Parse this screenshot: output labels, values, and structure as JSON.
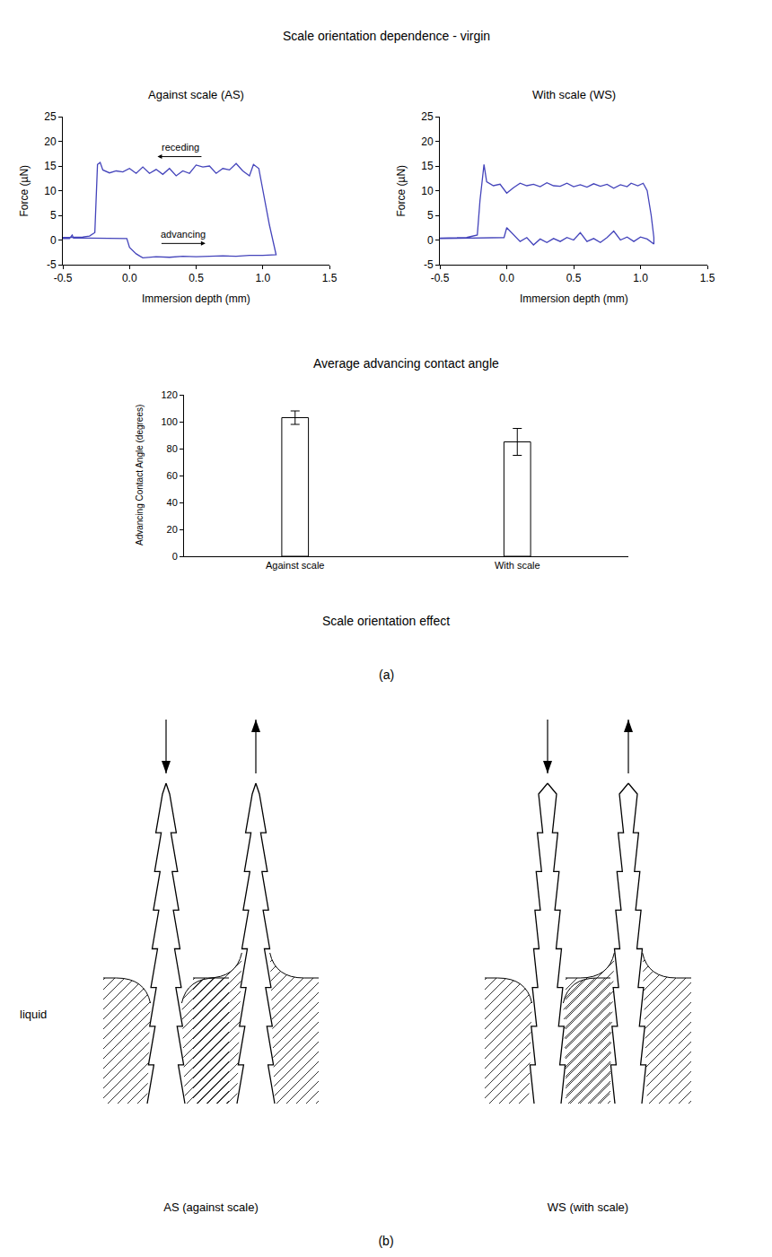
{
  "title": "Scale orientation dependence - virgin",
  "chart_data": [
    {
      "type": "line",
      "title": "Against scale (AS)",
      "x_label": "Immersion depth (mm)",
      "y_label": "Force (µN)",
      "color": "#4444bb",
      "x": [
        -0.5,
        -0.45,
        -0.43,
        -0.42,
        -0.3,
        -0.1,
        -0.02,
        0.0,
        0.05,
        0.08,
        0.1,
        0.2,
        0.3,
        0.4,
        0.5,
        0.6,
        0.7,
        0.8,
        0.9,
        1.0,
        1.1,
        1.05,
        1.0,
        0.97,
        0.93,
        0.9,
        0.85,
        0.8,
        0.75,
        0.7,
        0.65,
        0.6,
        0.55,
        0.5,
        0.45,
        0.4,
        0.35,
        0.3,
        0.25,
        0.2,
        0.15,
        0.1,
        0.05,
        0.0,
        -0.05,
        -0.1,
        -0.15,
        -0.2,
        -0.22,
        -0.24,
        -0.26,
        -0.3,
        -0.35,
        -0.5
      ],
      "values": [
        0.3,
        0.3,
        1.0,
        0.4,
        0.4,
        0.4,
        0.3,
        -1.5,
        -2.8,
        -3.3,
        -3.6,
        -3.4,
        -3.5,
        -3.3,
        -3.4,
        -3.3,
        -3.2,
        -3.3,
        -3.1,
        -3.1,
        -3.0,
        3.0,
        10.0,
        14.5,
        15.3,
        13.0,
        14.0,
        15.5,
        14.2,
        14.5,
        13.5,
        15.0,
        14.8,
        15.2,
        13.5,
        14.0,
        13.0,
        14.5,
        13.3,
        14.3,
        13.5,
        14.8,
        13.5,
        14.5,
        13.8,
        14.0,
        13.6,
        14.2,
        15.7,
        15.3,
        1.5,
        0.8,
        0.6,
        0.5
      ],
      "xlim": [
        -0.5,
        1.5
      ],
      "xticks": [
        -0.5,
        {
          "value": 0,
          "label": "0.0"
        },
        0.5,
        {
          "value": 1,
          "label": "1.0"
        },
        1.5
      ],
      "ylim": [
        -5,
        25
      ],
      "yticks": [
        -5,
        0,
        5,
        10,
        15,
        20,
        25
      ],
      "annotations": [
        {
          "text": "receding",
          "x": 0.38,
          "y": 18.8,
          "arrow": "left"
        },
        {
          "text": "advancing",
          "x": 0.4,
          "y": 1.2,
          "arrow": "right"
        }
      ]
    },
    {
      "type": "line",
      "title": "With scale (WS)",
      "x_label": "Immersion depth (mm)",
      "y_label": "Force (µN)",
      "color": "#4444bb",
      "x": [
        -0.5,
        -0.2,
        -0.02,
        0.0,
        0.05,
        0.1,
        0.15,
        0.2,
        0.25,
        0.3,
        0.35,
        0.4,
        0.45,
        0.5,
        0.55,
        0.6,
        0.65,
        0.7,
        0.75,
        0.8,
        0.85,
        0.9,
        0.95,
        1.0,
        1.05,
        1.1,
        1.1,
        1.08,
        1.05,
        1.02,
        0.98,
        0.93,
        0.9,
        0.85,
        0.8,
        0.75,
        0.7,
        0.65,
        0.6,
        0.55,
        0.5,
        0.45,
        0.4,
        0.35,
        0.3,
        0.25,
        0.2,
        0.15,
        0.1,
        0.05,
        0.0,
        -0.05,
        -0.1,
        -0.15,
        -0.17,
        -0.2,
        -0.22,
        -0.3,
        -0.5
      ],
      "values": [
        0.3,
        0.4,
        0.5,
        2.5,
        1.0,
        -0.3,
        0.5,
        -1.0,
        0.2,
        -0.5,
        0.3,
        -0.3,
        0.5,
        0.0,
        1.5,
        -0.3,
        0.3,
        -0.5,
        0.5,
        1.8,
        0.0,
        0.6,
        -0.3,
        0.6,
        0.2,
        -0.8,
        0.5,
        5.0,
        10.0,
        11.5,
        11.0,
        11.5,
        10.8,
        11.2,
        10.5,
        11.3,
        10.9,
        11.4,
        10.7,
        11.2,
        10.8,
        11.5,
        10.9,
        11.0,
        11.6,
        10.8,
        11.3,
        11.0,
        11.5,
        10.6,
        9.5,
        11.3,
        11.0,
        11.8,
        15.3,
        8.0,
        1.0,
        0.5,
        0.4
      ],
      "xlim": [
        -0.5,
        1.5
      ],
      "xticks": [
        -0.5,
        {
          "value": 0,
          "label": "0.0"
        },
        0.5,
        {
          "value": 1,
          "label": "1.0"
        },
        1.5
      ],
      "ylim": [
        -5,
        25
      ],
      "yticks": [
        -5,
        0,
        5,
        10,
        15,
        20,
        25
      ]
    },
    {
      "type": "bar",
      "title": "Average advancing contact angle",
      "x_label": "Scale orientation effect",
      "y_label": "Advancing Contact Angle (degrees)",
      "categories": [
        "Against scale",
        "With scale"
      ],
      "values": [
        103,
        85
      ],
      "errors": [
        5,
        10
      ],
      "color": "#ffffff",
      "ylim": [
        0,
        120
      ],
      "yticks": [
        0,
        20,
        40,
        60,
        80,
        100,
        120
      ]
    }
  ],
  "panel_labels": [
    "(a)",
    "(b)"
  ],
  "diagram": {
    "liquid_label": "liquid",
    "groups": [
      {
        "label": "AS (against scale)"
      },
      {
        "label": "WS (with scale)"
      }
    ]
  }
}
